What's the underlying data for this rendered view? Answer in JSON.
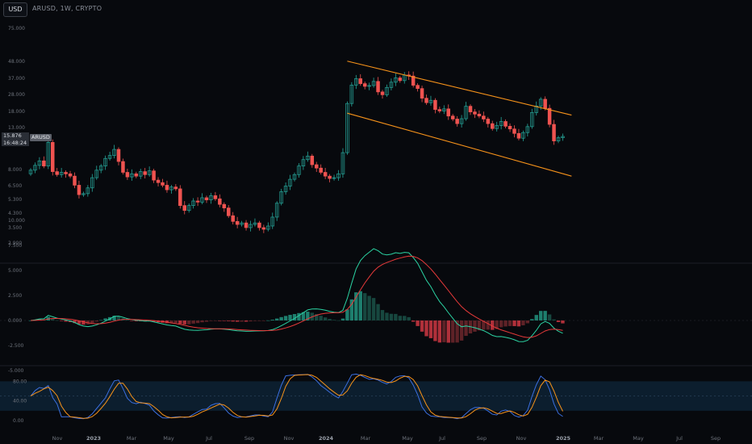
{
  "header": {
    "currency_button": "USD",
    "symbol_title": "ARUSD, 1W, CRYPTO"
  },
  "price_badge": {
    "price": "15.876",
    "countdown": "16:48:24",
    "ticker": "ARUSD"
  },
  "colors": {
    "up": "#26a69a",
    "down": "#ef5350",
    "channel": "#f7931a",
    "macd_line": "#2bd3a3",
    "signal_line": "#e83a3a",
    "stoch_k": "#3b6fe0",
    "stoch_d": "#f7931a",
    "stoch_band": "#0d2235"
  },
  "axes": {
    "price_ticks": [
      "75.000",
      "48.000",
      "37.000",
      "28.000",
      "18.000",
      "13.000",
      "10.000",
      "8.000",
      "6.500",
      "5.300",
      "4.300",
      "3.500",
      "2.900"
    ],
    "macd_ticks": [
      "10.000",
      "7.500",
      "5.000",
      "2.500",
      "0.000",
      "-2.500",
      "-5.000"
    ],
    "stoch_ticks": [
      "80.00",
      "40.00",
      "0.00"
    ],
    "time_ticks": [
      {
        "label": "Nov",
        "bold": false
      },
      {
        "label": "2023",
        "bold": true
      },
      {
        "label": "Mar",
        "bold": false
      },
      {
        "label": "May",
        "bold": false
      },
      {
        "label": "Jul",
        "bold": false
      },
      {
        "label": "Sep",
        "bold": false
      },
      {
        "label": "Nov",
        "bold": false
      },
      {
        "label": "2024",
        "bold": true
      },
      {
        "label": "Mar",
        "bold": false
      },
      {
        "label": "May",
        "bold": false
      },
      {
        "label": "Jul",
        "bold": false
      },
      {
        "label": "Sep",
        "bold": false
      },
      {
        "label": "Nov",
        "bold": false
      },
      {
        "label": "2025",
        "bold": true
      },
      {
        "label": "Mar",
        "bold": false
      },
      {
        "label": "May",
        "bold": false
      },
      {
        "label": "Jul",
        "bold": false
      },
      {
        "label": "Sep",
        "bold": false
      }
    ]
  },
  "chart_data": {
    "type": "candlestick",
    "interval": "1W",
    "y_scale": "log",
    "grid": false,
    "closes": [
      9.8,
      10.5,
      11.2,
      10.4,
      14.6,
      9.6,
      9.2,
      9.5,
      9.3,
      9.0,
      7.9,
      6.9,
      7.0,
      7.6,
      8.8,
      9.8,
      10.4,
      11.6,
      12.1,
      13.2,
      11.1,
      9.5,
      8.9,
      9.3,
      9.0,
      9.6,
      9.2,
      9.7,
      8.5,
      8.2,
      7.9,
      7.4,
      7.7,
      7.5,
      5.9,
      5.5,
      5.9,
      6.3,
      6.2,
      6.6,
      6.4,
      6.8,
      6.5,
      6.0,
      5.7,
      5.1,
      4.7,
      4.5,
      4.6,
      4.3,
      4.5,
      4.6,
      4.3,
      4.2,
      4.4,
      5.0,
      6.1,
      7.2,
      7.8,
      8.6,
      9.2,
      10.4,
      11.4,
      12.0,
      10.6,
      10.1,
      9.5,
      9.0,
      8.7,
      8.8,
      9.3,
      12.6,
      25.5,
      33.2,
      36.4,
      33.9,
      32.6,
      33.0,
      35.0,
      30.1,
      28.9,
      32.1,
      34.6,
      36.8,
      35.4,
      38.4,
      37.8,
      33.1,
      31.6,
      27.5,
      25.8,
      26.7,
      23.4,
      22.9,
      23.6,
      21.3,
      20.4,
      19.1,
      20.5,
      24.5,
      22.6,
      21.9,
      21.3,
      20.4,
      19.1,
      17.8,
      18.6,
      19.7,
      18.4,
      17.7,
      16.6,
      15.5,
      16.8,
      18.3,
      22.4,
      24.6,
      27.1,
      23.8,
      18.9,
      14.9,
      15.6,
      15.9
    ],
    "channel": {
      "upper": {
        "from": {
          "index": 72,
          "price": 46.8
        },
        "to": {
          "index": 123,
          "price": 21.6
        }
      },
      "lower": {
        "from": {
          "index": 72,
          "price": 22.2
        },
        "to": {
          "index": 123,
          "price": 9.0
        }
      }
    },
    "macd": {
      "fast": 12,
      "slow": 26,
      "signal": 9,
      "ylim": [
        -6,
        11
      ]
    },
    "stochastic": {
      "length": 14,
      "smooth": 3,
      "ylim": [
        0,
        100
      ],
      "band": [
        20,
        80
      ]
    }
  }
}
